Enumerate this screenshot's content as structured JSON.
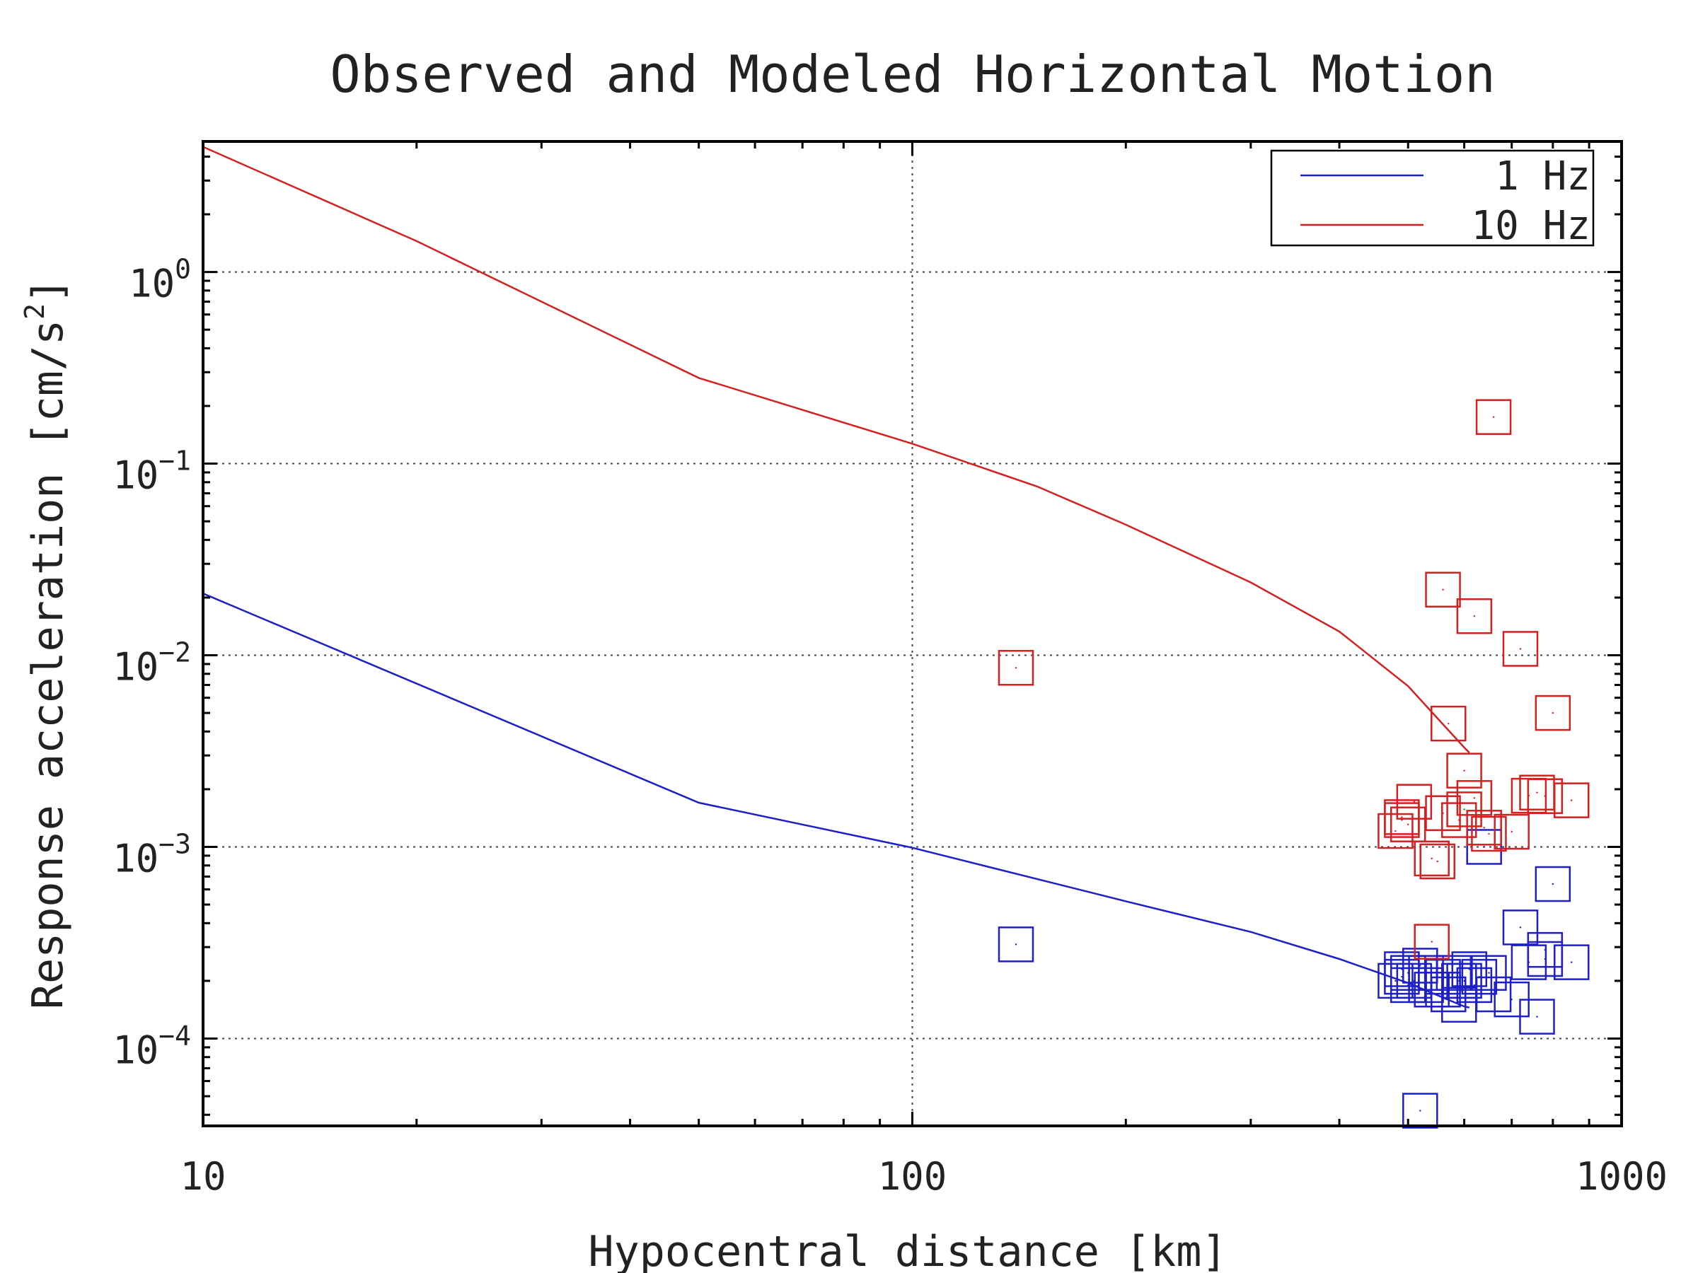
{
  "chart_data": {
    "type": "scatter",
    "title": "Observed and Modeled Horizontal Motion",
    "xlabel": "Hypocentral distance [km]",
    "ylabel": "Response acceleration [cm/s",
    "ylabel_sup": "2",
    "ylabel_end": "]",
    "x_scale": "log",
    "y_scale": "log",
    "xlim": [
      10,
      1000
    ],
    "ylim": [
      3.5e-05,
      4.8
    ],
    "grid": true,
    "legend_position": "top-right",
    "x_ticks": [
      {
        "value": 10,
        "label": "10"
      },
      {
        "value": 100,
        "label": "100"
      },
      {
        "value": 1000,
        "label": "1000"
      }
    ],
    "y_ticks": [
      {
        "value": 1,
        "base": "10",
        "exp": "0"
      },
      {
        "value": 0.1,
        "base": "10",
        "exp": "−1"
      },
      {
        "value": 0.01,
        "base": "10",
        "exp": "−2"
      },
      {
        "value": 0.001,
        "base": "10",
        "exp": "−3"
      },
      {
        "value": 0.0001,
        "base": "10",
        "exp": "−4"
      }
    ],
    "series": [
      {
        "name": "1 Hz",
        "color": "#1f1fc8",
        "model": {
          "x": [
            10,
            50,
            100,
            200,
            300,
            400,
            500,
            600,
            610
          ],
          "y": [
            0.021,
            0.0017,
            0.00099,
            0.00052,
            0.00036,
            0.00026,
            0.000195,
            0.000147,
            0.000145
          ]
        },
        "observed": {
          "x": [
            140,
            520,
            480,
            490,
            500,
            510,
            520,
            530,
            540,
            560,
            570,
            580,
            590,
            600,
            610,
            620,
            630,
            650,
            660,
            700,
            720,
            740,
            760,
            780,
            800,
            850,
            530,
            500,
            490,
            560,
            590,
            640,
            780
          ],
          "y": [
            0.00031,
            4.2e-05,
            0.0002,
            0.00023,
            0.00019,
            0.0002,
            0.00024,
            0.00022,
            0.00018,
            0.00021,
            0.00017,
            0.00022,
            0.00015,
            0.0002,
            0.00023,
            0.00019,
            0.00021,
            0.00022,
            0.00017,
            0.00016,
            0.00038,
            0.00025,
            0.00013,
            0.00029,
            0.00064,
            0.00025,
            0.00019,
            0.00022,
            0.00021,
            0.00018,
            0.0002,
            0.001,
            0.00026
          ]
        }
      },
      {
        "name": "10 Hz",
        "color": "#d42020",
        "model": {
          "x": [
            10,
            20,
            50,
            100,
            150,
            200,
            300,
            400,
            500,
            600,
            610
          ],
          "y": [
            4.5,
            1.45,
            0.28,
            0.127,
            0.076,
            0.048,
            0.024,
            0.0133,
            0.0069,
            0.0033,
            0.0031
          ]
        },
        "observed": {
          "x": [
            140,
            660,
            560,
            620,
            720,
            800,
            570,
            600,
            620,
            480,
            490,
            500,
            510,
            540,
            560,
            590,
            600,
            640,
            650,
            700,
            740,
            760,
            780,
            850,
            550,
            540,
            490
          ],
          "y": [
            0.0086,
            0.175,
            0.022,
            0.016,
            0.0108,
            0.005,
            0.0044,
            0.0025,
            0.0018,
            0.00121,
            0.00143,
            0.00131,
            0.00172,
            0.00087,
            0.0015,
            0.00138,
            0.00157,
            0.00126,
            0.00117,
            0.0012,
            0.00185,
            0.00192,
            0.00184,
            0.00175,
            0.00084,
            0.00032,
            0.00138
          ]
        }
      }
    ]
  }
}
